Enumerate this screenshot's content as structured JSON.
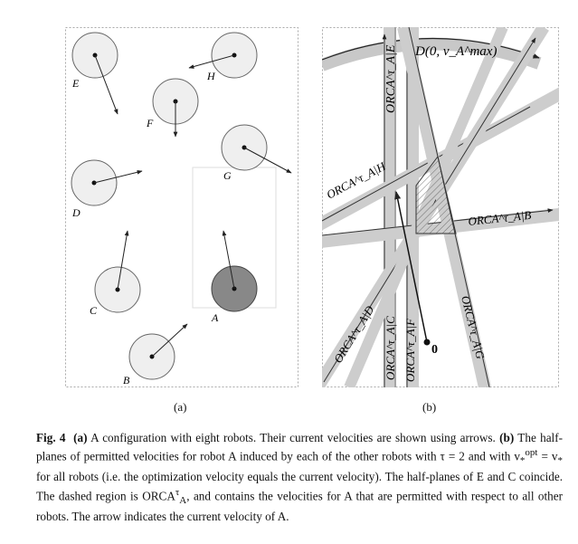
{
  "figure": {
    "panel_a": {
      "sublabel": "(a)",
      "robots": [
        {
          "name": "E"
        },
        {
          "name": "H"
        },
        {
          "name": "F"
        },
        {
          "name": "G"
        },
        {
          "name": "D"
        },
        {
          "name": "C"
        },
        {
          "name": "A",
          "highlight": true
        },
        {
          "name": "B"
        }
      ]
    },
    "panel_b": {
      "sublabel": "(b)",
      "disk_label": "D(0, v_A^max)",
      "orca_labels": [
        "ORCA^τ_A|E",
        "ORCA^τ_A|H",
        "ORCA^τ_A|B",
        "ORCA^τ_A|D",
        "ORCA^τ_A|C",
        "ORCA^τ_A|F",
        "ORCA^τ_A|G"
      ],
      "origin_label": "0"
    }
  },
  "caption": {
    "label": "Fig. 4",
    "part_a_label": "(a)",
    "part_a_text": "A configuration with eight robots. Their current velocities are shown using arrows.",
    "part_b_label": "(b)",
    "part_b_text_1": "The half-planes of permitted velocities for robot A induced by each of the other robots with τ = 2 and with v",
    "part_b_text_2": " = v",
    "part_b_text_3": " for all robots (i.e. the optimization velocity equals the current velocity). The half-planes of E and C coincide. The dashed region is ORCA",
    "part_b_text_4": ", and contains the velocities for A that are permitted with respect to all other robots. The arrow indicates the current velocity of A."
  }
}
